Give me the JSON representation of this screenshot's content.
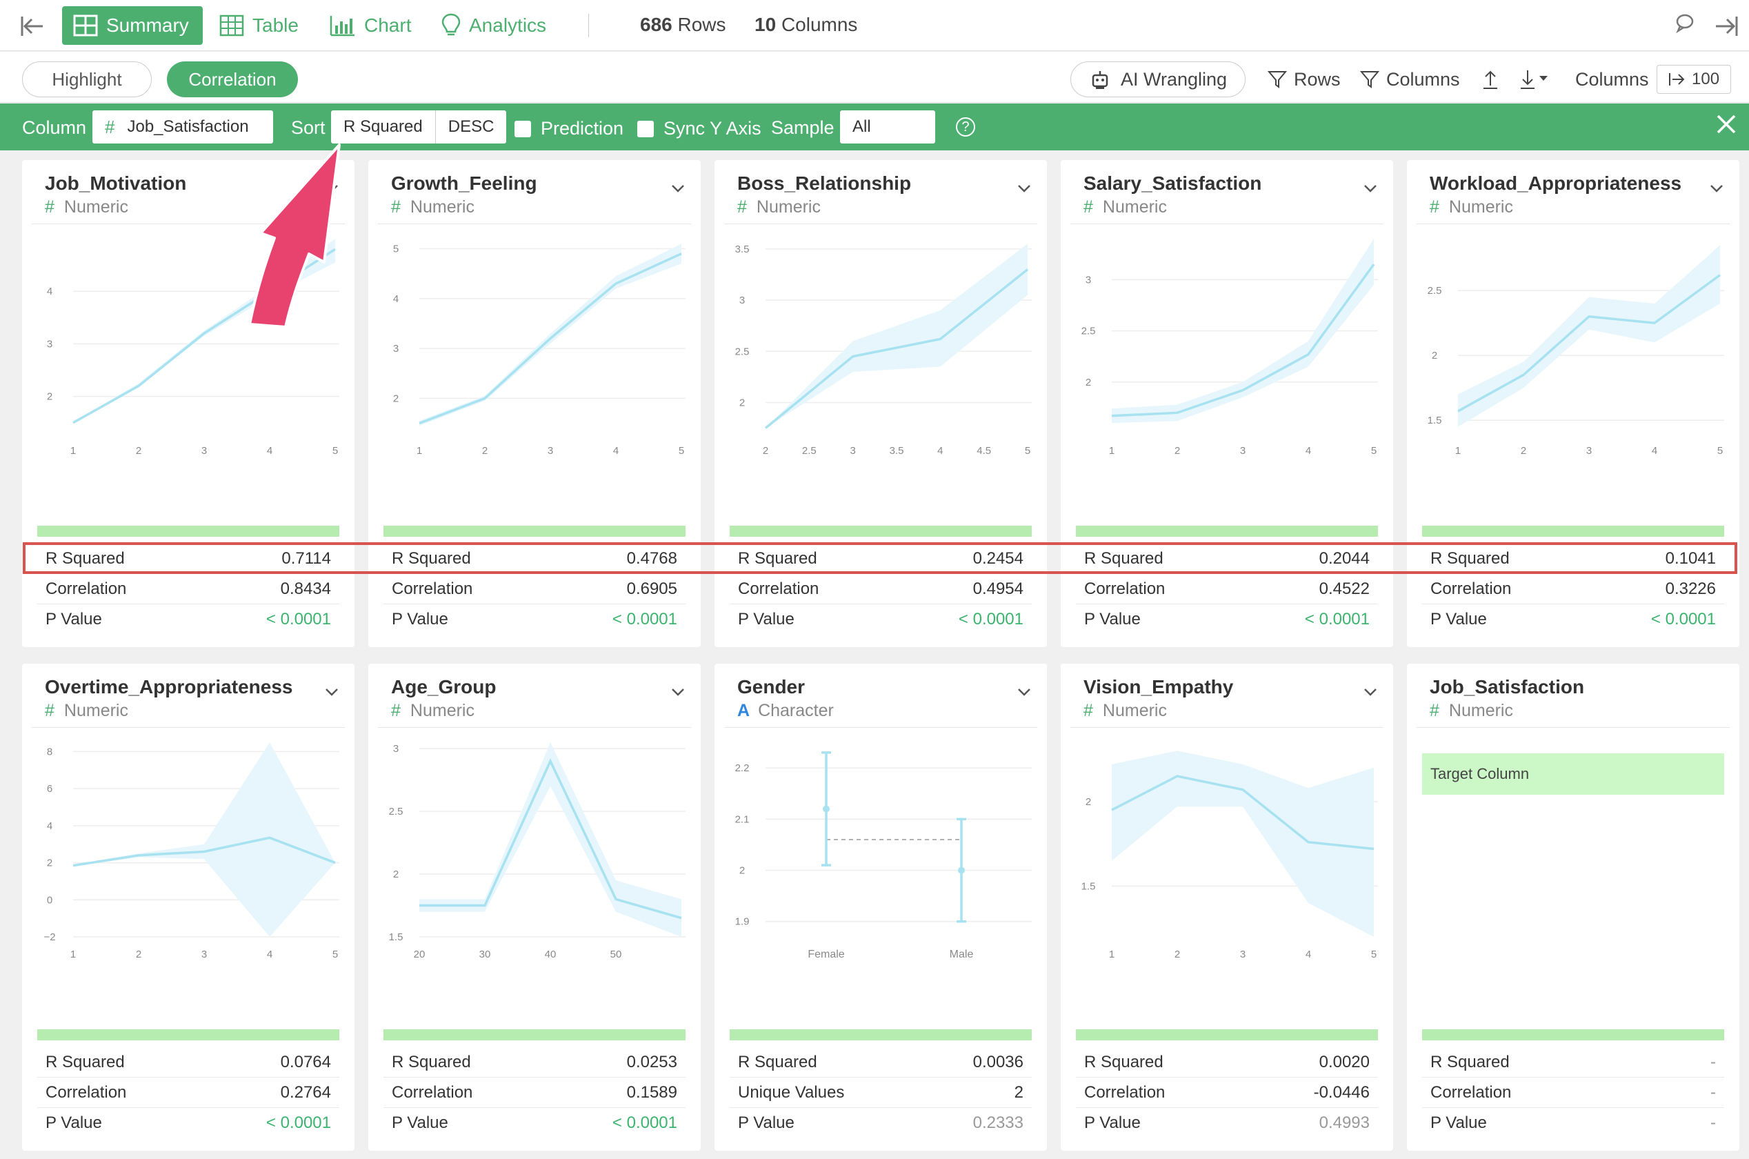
{
  "toolbar": {
    "summary": "Summary",
    "table": "Table",
    "chart": "Chart",
    "analytics": "Analytics",
    "rows_count": "686",
    "rows_label": "Rows",
    "cols_count": "10",
    "cols_label": "Columns"
  },
  "subbar": {
    "highlight": "Highlight",
    "correlation": "Correlation",
    "ai_wrangling": "AI Wrangling",
    "rows": "Rows",
    "columns": "Columns",
    "columns_label": "Columns",
    "columns_value": "100"
  },
  "filter": {
    "column_label": "Column",
    "column_value": "Job_Satisfaction",
    "sort_label": "Sort",
    "sort_value": "R Squared",
    "sort_order": "DESC",
    "prediction": "Prediction",
    "sync_y": "Sync Y Axis",
    "sample_label": "Sample",
    "sample_value": "All"
  },
  "colors": {
    "accent": "#4caf70",
    "line": "#a8e2f0",
    "band": "#e6f6fc",
    "highlight_border": "#d9534f"
  },
  "stat_labels": {
    "r2": "R Squared",
    "corr": "Correlation",
    "p": "P Value",
    "uniq": "Unique Values"
  },
  "cards": [
    {
      "title": "Job_Motivation",
      "type": "Numeric",
      "r2": "0.7114",
      "corr": "0.8434",
      "p": "< 0.0001",
      "p_sig": true,
      "chart_data": {
        "type": "line",
        "x": [
          1,
          2,
          3,
          4,
          5
        ],
        "y": [
          1.5,
          2.2,
          3.2,
          4.0,
          4.8
        ],
        "lo": [
          1.5,
          2.2,
          3.15,
          3.9,
          4.55
        ],
        "hi": [
          1.5,
          2.25,
          3.25,
          4.1,
          5.0
        ],
        "xticks": [
          "1",
          "2",
          "3",
          "4",
          "5"
        ],
        "yticks": [
          2,
          3,
          4
        ],
        "ylim": [
          1.3,
          5.0
        ]
      }
    },
    {
      "title": "Growth_Feeling",
      "type": "Numeric",
      "r2": "0.4768",
      "corr": "0.6905",
      "p": "< 0.0001",
      "p_sig": true,
      "chart_data": {
        "type": "line",
        "x": [
          1,
          2,
          3,
          4,
          5
        ],
        "y": [
          1.5,
          2.0,
          3.2,
          4.3,
          4.9
        ],
        "lo": [
          1.45,
          1.95,
          3.1,
          4.2,
          4.7
        ],
        "hi": [
          1.55,
          2.05,
          3.3,
          4.45,
          5.1
        ],
        "xticks": [
          "1",
          "2",
          "3",
          "4",
          "5"
        ],
        "yticks": [
          2,
          3,
          4,
          5
        ],
        "ylim": [
          1.3,
          5.2
        ]
      }
    },
    {
      "title": "Boss_Relationship",
      "type": "Numeric",
      "r2": "0.2454",
      "corr": "0.4954",
      "p": "< 0.0001",
      "p_sig": true,
      "chart_data": {
        "type": "line",
        "x": [
          2,
          3,
          4,
          5
        ],
        "y": [
          1.75,
          2.45,
          2.62,
          3.3
        ],
        "lo": [
          1.75,
          2.3,
          2.35,
          3.05
        ],
        "hi": [
          1.75,
          2.6,
          2.9,
          3.55
        ],
        "xticks": [
          "2",
          "2.5",
          "3",
          "3.5",
          "4",
          "4.5",
          "5"
        ],
        "xlim": [
          2,
          5
        ],
        "yticks": [
          2,
          2.5,
          3,
          3.5
        ],
        "ylim": [
          1.7,
          3.6
        ]
      }
    },
    {
      "title": "Salary_Satisfaction",
      "type": "Numeric",
      "r2": "0.2044",
      "corr": "0.4522",
      "p": "< 0.0001",
      "p_sig": true,
      "chart_data": {
        "type": "line",
        "x": [
          1,
          2,
          3,
          4,
          5
        ],
        "y": [
          1.67,
          1.7,
          1.92,
          2.27,
          3.15
        ],
        "lo": [
          1.6,
          1.62,
          1.85,
          2.15,
          2.95
        ],
        "hi": [
          1.74,
          1.78,
          2.0,
          2.4,
          3.4
        ],
        "xticks": [
          "1",
          "2",
          "3",
          "4",
          "5"
        ],
        "yticks": [
          2,
          2.5,
          3
        ],
        "ylim": [
          1.5,
          3.4
        ]
      }
    },
    {
      "title": "Workload_Appropriateness",
      "type": "Numeric",
      "r2": "0.1041",
      "corr": "0.3226",
      "p": "< 0.0001",
      "p_sig": true,
      "chart_data": {
        "type": "line",
        "x": [
          1,
          2,
          3,
          4,
          5
        ],
        "y": [
          1.57,
          1.85,
          2.3,
          2.25,
          2.62
        ],
        "lo": [
          1.45,
          1.75,
          2.2,
          2.1,
          2.4
        ],
        "hi": [
          1.7,
          1.95,
          2.45,
          2.4,
          2.85
        ],
        "xticks": [
          "1",
          "2",
          "3",
          "4",
          "5"
        ],
        "yticks": [
          1.5,
          2,
          2.5
        ],
        "ylim": [
          1.4,
          2.9
        ]
      }
    },
    {
      "title": "Overtime_Appropriateness",
      "type": "Numeric",
      "r2": "0.0764",
      "corr": "0.2764",
      "p": "< 0.0001",
      "p_sig": true,
      "chart_data": {
        "type": "line",
        "x": [
          1,
          2,
          3,
          4,
          5
        ],
        "y": [
          1.85,
          2.4,
          2.6,
          3.35,
          2.0
        ],
        "lo": [
          1.8,
          2.3,
          2.2,
          -2.0,
          2.0
        ],
        "hi": [
          1.9,
          2.5,
          3.0,
          8.5,
          2.0
        ],
        "xticks": [
          "1",
          "2",
          "3",
          "4",
          "5"
        ],
        "yticks": [
          -2,
          0,
          2,
          4,
          6,
          8
        ],
        "ylim": [
          -2,
          8.5
        ]
      }
    },
    {
      "title": "Age_Group",
      "type": "Numeric",
      "r2": "0.0253",
      "corr": "0.1589",
      "p": "< 0.0001",
      "p_sig": true,
      "chart_data": {
        "type": "line",
        "x": [
          20,
          30,
          40,
          50,
          60
        ],
        "y": [
          1.75,
          1.75,
          2.9,
          1.8,
          1.65
        ],
        "lo": [
          1.7,
          1.7,
          2.7,
          1.7,
          1.5
        ],
        "hi": [
          1.8,
          1.8,
          3.05,
          1.95,
          1.8
        ],
        "xticks": [
          "20",
          "30",
          "40",
          "50"
        ],
        "xlim": [
          20,
          60
        ],
        "yticks": [
          1.5,
          2,
          2.5,
          3
        ],
        "ylim": [
          1.5,
          3.05
        ]
      }
    },
    {
      "title": "Gender",
      "type": "Character",
      "char": true,
      "r2": "0.0036",
      "row2_label": "Unique Values",
      "corr": "2",
      "p": "0.2333",
      "p_sig": false,
      "chart_data": {
        "type": "errorbar",
        "categories": [
          "Female",
          "Male"
        ],
        "values": [
          2.12,
          2.0
        ],
        "lo": [
          2.01,
          1.9
        ],
        "hi": [
          2.23,
          2.1
        ],
        "mean_line": 2.06,
        "yticks": [
          1.9,
          2,
          2.1,
          2.2
        ],
        "ylim": [
          1.87,
          2.25
        ]
      }
    },
    {
      "title": "Vision_Empathy",
      "type": "Numeric",
      "r2": "0.0020",
      "corr": "-0.0446",
      "p": "0.4993",
      "p_sig": false,
      "chart_data": {
        "type": "line",
        "x": [
          1,
          2,
          3,
          4,
          5
        ],
        "y": [
          1.95,
          2.15,
          2.07,
          1.76,
          1.72
        ],
        "lo": [
          1.65,
          1.97,
          1.97,
          1.4,
          1.2
        ],
        "hi": [
          2.22,
          2.3,
          2.22,
          2.08,
          2.2
        ],
        "xticks": [
          "1",
          "2",
          "3",
          "4",
          "5"
        ],
        "yticks": [
          1.5,
          2
        ],
        "ylim": [
          1.2,
          2.35
        ]
      }
    },
    {
      "title": "Job_Satisfaction",
      "type": "Numeric",
      "target": "Target Column",
      "r2": "-",
      "corr": "-",
      "p": "-",
      "p_sig": false,
      "no_chev": true
    }
  ]
}
